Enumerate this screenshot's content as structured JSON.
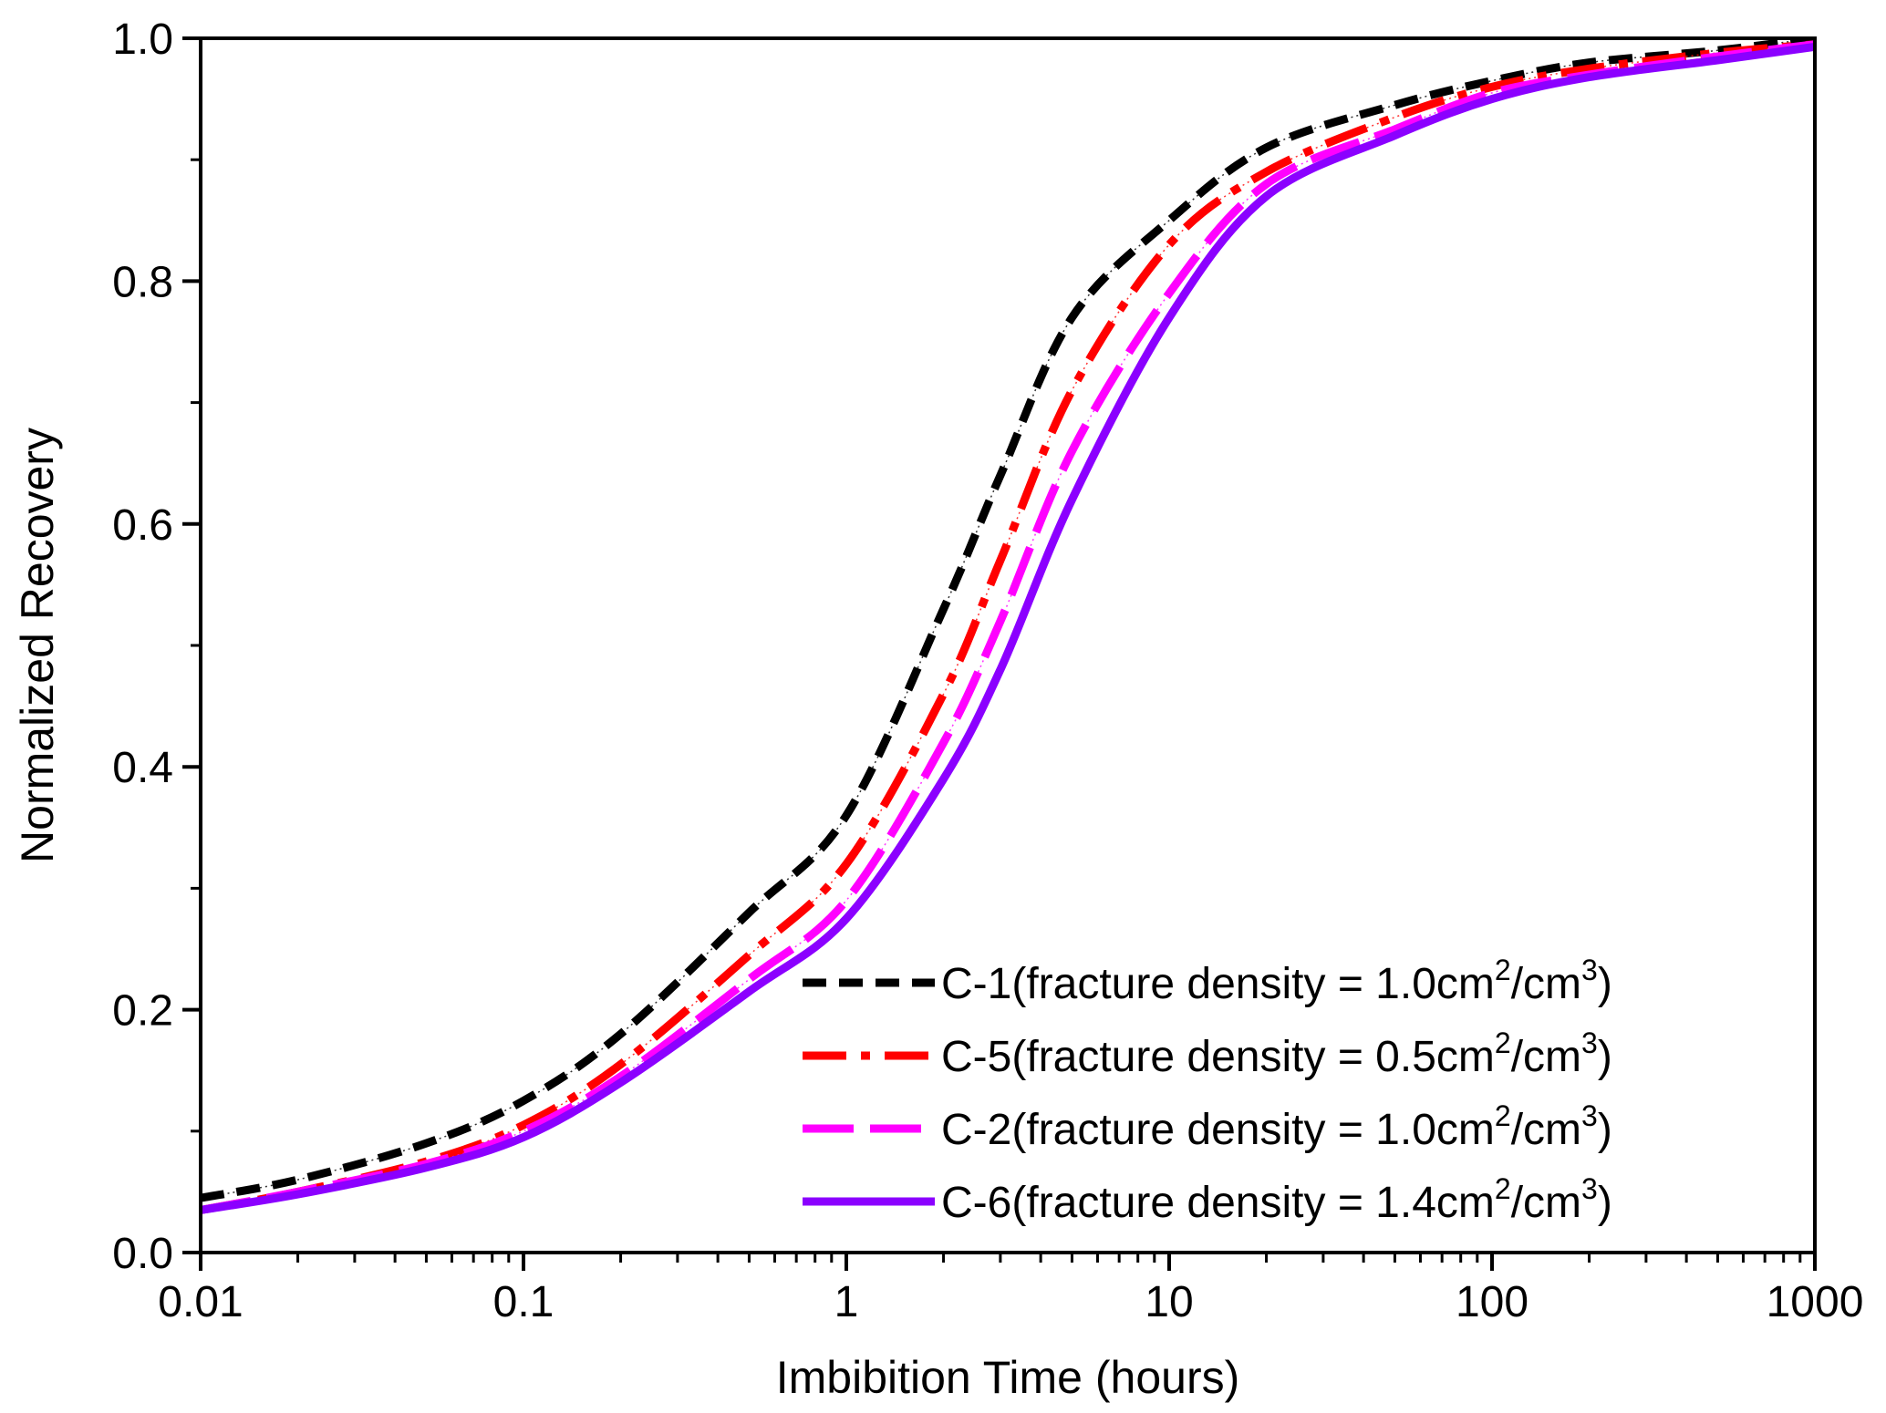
{
  "chart_data": {
    "type": "line",
    "title": "",
    "xlabel": "Imbibition Time (hours)",
    "ylabel": "Normalized Recovery",
    "xscale": "log",
    "xlim": [
      0.01,
      1000
    ],
    "ylim": [
      0.0,
      1.0
    ],
    "x_ticks": [
      0.01,
      0.1,
      1,
      10,
      100,
      1000
    ],
    "x_tick_labels": [
      "0.01",
      "0.1",
      "1",
      "10",
      "100",
      "1000"
    ],
    "y_ticks": [
      0.0,
      0.2,
      0.4,
      0.6,
      0.8,
      1.0
    ],
    "y_tick_labels": [
      "0.0",
      "0.2",
      "0.4",
      "0.6",
      "0.8",
      "1.0"
    ],
    "grid": false,
    "legend_position": "bottom-right",
    "x": [
      0.01,
      0.02,
      0.05,
      0.1,
      0.2,
      0.5,
      1,
      2,
      3,
      5,
      10,
      20,
      50,
      100,
      200,
      500,
      1000
    ],
    "series": [
      {
        "name": "C-1",
        "label_main": "C-1(fracture density = 1.0cm",
        "label_exp1": "2",
        "label_mid": "/cm",
        "label_exp2": "3",
        "label_end": ")",
        "color": "#000000",
        "dash": "dash",
        "values": [
          0.045,
          0.06,
          0.09,
          0.125,
          0.18,
          0.28,
          0.36,
          0.53,
          0.64,
          0.77,
          0.85,
          0.91,
          0.945,
          0.965,
          0.98,
          0.99,
          1.0
        ]
      },
      {
        "name": "C-5",
        "label_main": "C-5(fracture density = 0.5cm",
        "label_exp1": "2",
        "label_mid": "/cm",
        "label_exp2": "3",
        "label_end": ")",
        "color": "#ff0000",
        "dash": "dash-dot",
        "values": [
          0.035,
          0.05,
          0.075,
          0.105,
          0.155,
          0.245,
          0.32,
          0.46,
          0.57,
          0.71,
          0.83,
          0.89,
          0.935,
          0.96,
          0.975,
          0.988,
          0.995
        ]
      },
      {
        "name": "C-2",
        "label_main": "C-2(fracture density = 1.0cm",
        "label_exp1": "2",
        "label_mid": "/cm",
        "label_exp2": "3",
        "label_end": ")",
        "color": "#ff00ff",
        "dash": "long-dash",
        "values": [
          0.035,
          0.05,
          0.073,
          0.1,
          0.145,
          0.225,
          0.29,
          0.42,
          0.52,
          0.66,
          0.79,
          0.88,
          0.925,
          0.955,
          0.97,
          0.985,
          0.995
        ]
      },
      {
        "name": "C-6",
        "label_main": "C-6(fracture density = 1.4cm",
        "label_exp1": "2",
        "label_mid": "/cm",
        "label_exp2": "3",
        "label_end": ")",
        "color": "#8b00ff",
        "dash": "solid",
        "values": [
          0.035,
          0.048,
          0.07,
          0.095,
          0.14,
          0.215,
          0.275,
          0.39,
          0.48,
          0.62,
          0.77,
          0.87,
          0.92,
          0.95,
          0.968,
          0.982,
          0.993
        ]
      }
    ]
  }
}
